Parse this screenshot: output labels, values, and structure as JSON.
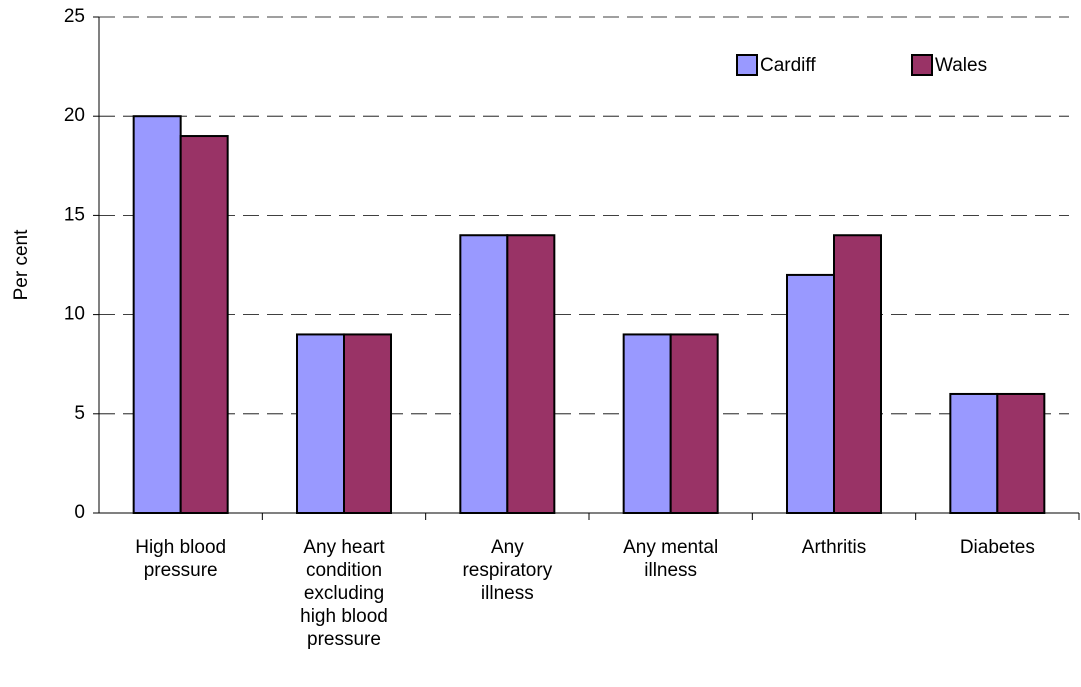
{
  "chart_data": {
    "type": "bar",
    "categories": [
      "High blood pressure",
      "Any heart condition excluding high blood pressure",
      "Any respiratory illness",
      "Any mental illness",
      "Arthritis",
      "Diabetes"
    ],
    "series": [
      {
        "name": "Cardiff",
        "color": "#9999ff",
        "values": [
          20,
          9,
          14,
          9,
          12,
          6
        ]
      },
      {
        "name": "Wales",
        "color": "#993366",
        "values": [
          19,
          9,
          14,
          9,
          14,
          6
        ]
      }
    ],
    "y_label": "Per cent",
    "ylim": [
      0,
      25
    ],
    "yticks": [
      0,
      5,
      10,
      15,
      20,
      25
    ],
    "grid": true,
    "legend": "upper right"
  }
}
